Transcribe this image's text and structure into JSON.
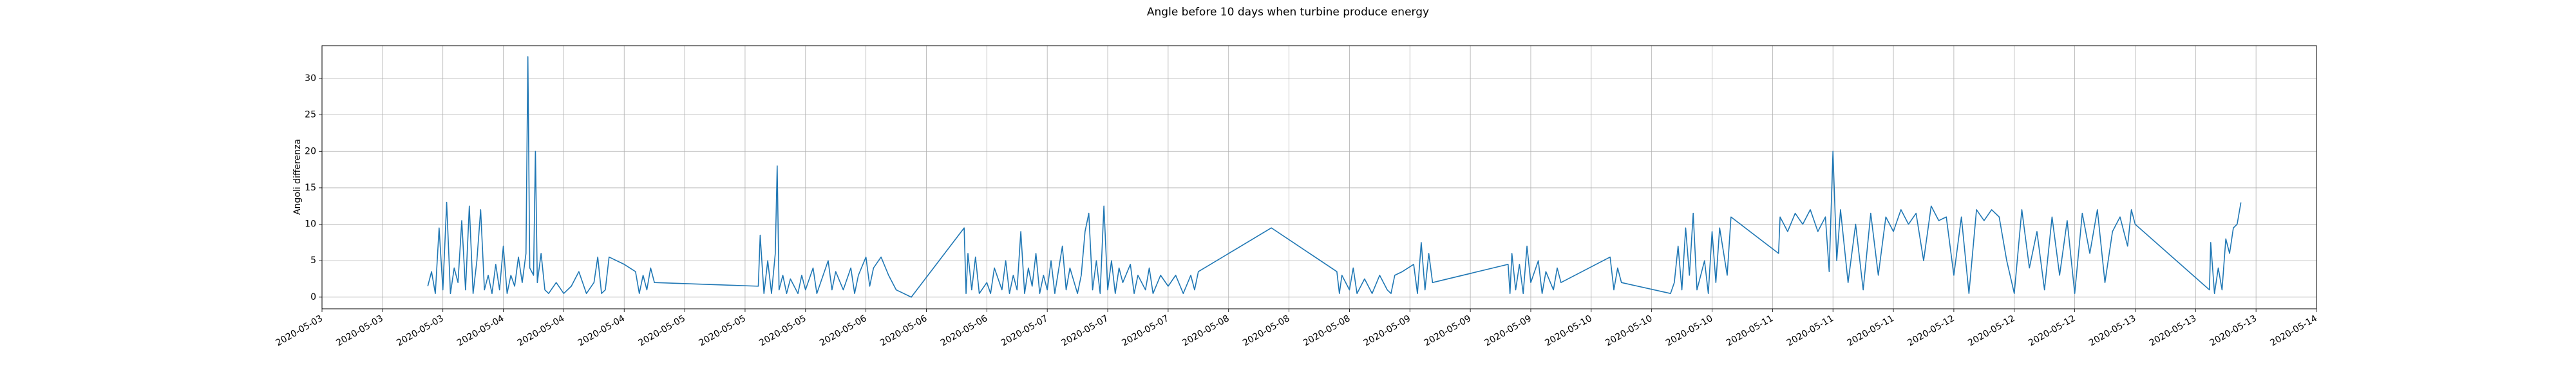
{
  "chart_data": {
    "type": "line",
    "title": "Angle before 10 days when turbine produce energy",
    "y_label": "Angoli differenza",
    "color": "#1f77b4",
    "grid": true,
    "xlim": [
      "2020-05-03 00:00",
      "2020-05-14 00:00"
    ],
    "ylim": [
      -1.6,
      34.5
    ],
    "yticks": [
      0,
      5,
      10,
      15,
      20,
      25,
      30
    ],
    "xticks": [
      {
        "value": "2020-05-03 00:00",
        "label": "2020-05-03"
      },
      {
        "value": "2020-05-03 08:00",
        "label": "2020-05-03"
      },
      {
        "value": "2020-05-03 16:00",
        "label": "2020-05-03"
      },
      {
        "value": "2020-05-04 00:00",
        "label": "2020-05-04"
      },
      {
        "value": "2020-05-04 08:00",
        "label": "2020-05-04"
      },
      {
        "value": "2020-05-04 16:00",
        "label": "2020-05-04"
      },
      {
        "value": "2020-05-05 00:00",
        "label": "2020-05-05"
      },
      {
        "value": "2020-05-05 08:00",
        "label": "2020-05-05"
      },
      {
        "value": "2020-05-05 16:00",
        "label": "2020-05-05"
      },
      {
        "value": "2020-05-06 00:00",
        "label": "2020-05-06"
      },
      {
        "value": "2020-05-06 08:00",
        "label": "2020-05-06"
      },
      {
        "value": "2020-05-06 16:00",
        "label": "2020-05-06"
      },
      {
        "value": "2020-05-07 00:00",
        "label": "2020-05-07"
      },
      {
        "value": "2020-05-07 08:00",
        "label": "2020-05-07"
      },
      {
        "value": "2020-05-07 16:00",
        "label": "2020-05-07"
      },
      {
        "value": "2020-05-08 00:00",
        "label": "2020-05-08"
      },
      {
        "value": "2020-05-08 08:00",
        "label": "2020-05-08"
      },
      {
        "value": "2020-05-08 16:00",
        "label": "2020-05-08"
      },
      {
        "value": "2020-05-09 00:00",
        "label": "2020-05-09"
      },
      {
        "value": "2020-05-09 08:00",
        "label": "2020-05-09"
      },
      {
        "value": "2020-05-09 16:00",
        "label": "2020-05-09"
      },
      {
        "value": "2020-05-10 00:00",
        "label": "2020-05-10"
      },
      {
        "value": "2020-05-10 08:00",
        "label": "2020-05-10"
      },
      {
        "value": "2020-05-10 16:00",
        "label": "2020-05-10"
      },
      {
        "value": "2020-05-11 00:00",
        "label": "2020-05-11"
      },
      {
        "value": "2020-05-11 08:00",
        "label": "2020-05-11"
      },
      {
        "value": "2020-05-11 16:00",
        "label": "2020-05-11"
      },
      {
        "value": "2020-05-12 00:00",
        "label": "2020-05-12"
      },
      {
        "value": "2020-05-12 08:00",
        "label": "2020-05-12"
      },
      {
        "value": "2020-05-12 16:00",
        "label": "2020-05-12"
      },
      {
        "value": "2020-05-13 00:00",
        "label": "2020-05-13"
      },
      {
        "value": "2020-05-13 08:00",
        "label": "2020-05-13"
      },
      {
        "value": "2020-05-13 16:00",
        "label": "2020-05-13"
      },
      {
        "value": "2020-05-14 00:00",
        "label": "2020-05-14"
      }
    ],
    "x": [
      "2020-05-03 14:00",
      "2020-05-03 14:30",
      "2020-05-03 15:00",
      "2020-05-03 15:30",
      "2020-05-03 16:00",
      "2020-05-03 16:30",
      "2020-05-03 17:00",
      "2020-05-03 17:30",
      "2020-05-03 18:00",
      "2020-05-03 18:30",
      "2020-05-03 19:00",
      "2020-05-03 19:30",
      "2020-05-03 20:00",
      "2020-05-03 20:30",
      "2020-05-03 21:00",
      "2020-05-03 21:30",
      "2020-05-03 22:00",
      "2020-05-03 22:30",
      "2020-05-03 23:00",
      "2020-05-03 23:30",
      "2020-05-04 00:00",
      "2020-05-04 00:30",
      "2020-05-04 01:00",
      "2020-05-04 01:30",
      "2020-05-04 02:00",
      "2020-05-04 02:30",
      "2020-05-04 03:00",
      "2020-05-04 03:15",
      "2020-05-04 03:30",
      "2020-05-04 04:00",
      "2020-05-04 04:15",
      "2020-05-04 04:30",
      "2020-05-04 05:00",
      "2020-05-04 05:30",
      "2020-05-04 06:00",
      "2020-05-04 07:00",
      "2020-05-04 08:00",
      "2020-05-04 09:00",
      "2020-05-04 10:00",
      "2020-05-04 11:00",
      "2020-05-04 12:00",
      "2020-05-04 12:30",
      "2020-05-04 13:00",
      "2020-05-04 13:30",
      "2020-05-04 14:00",
      "2020-05-04 16:00",
      "2020-05-04 17:30",
      "2020-05-04 18:00",
      "2020-05-04 18:30",
      "2020-05-04 19:00",
      "2020-05-04 19:30",
      "2020-05-04 20:00",
      "2020-05-05 09:45",
      "2020-05-05 10:00",
      "2020-05-05 10:30",
      "2020-05-05 11:00",
      "2020-05-05 11:30",
      "2020-05-05 12:00",
      "2020-05-05 12:15",
      "2020-05-05 12:30",
      "2020-05-05 13:00",
      "2020-05-05 13:30",
      "2020-05-05 14:00",
      "2020-05-05 15:00",
      "2020-05-05 15:30",
      "2020-05-05 16:00",
      "2020-05-05 17:00",
      "2020-05-05 17:30",
      "2020-05-05 18:00",
      "2020-05-05 19:00",
      "2020-05-05 19:30",
      "2020-05-05 20:00",
      "2020-05-05 21:00",
      "2020-05-05 22:00",
      "2020-05-05 22:30",
      "2020-05-05 23:00",
      "2020-05-06 00:00",
      "2020-05-06 00:30",
      "2020-05-06 01:00",
      "2020-05-06 02:00",
      "2020-05-06 03:00",
      "2020-05-06 04:00",
      "2020-05-06 06:00",
      "2020-05-06 13:00",
      "2020-05-06 13:15",
      "2020-05-06 13:30",
      "2020-05-06 14:00",
      "2020-05-06 14:30",
      "2020-05-06 15:00",
      "2020-05-06 16:00",
      "2020-05-06 16:30",
      "2020-05-06 17:00",
      "2020-05-06 18:00",
      "2020-05-06 18:30",
      "2020-05-06 19:00",
      "2020-05-06 19:30",
      "2020-05-06 20:00",
      "2020-05-06 20:30",
      "2020-05-06 21:00",
      "2020-05-06 21:30",
      "2020-05-06 22:00",
      "2020-05-06 22:30",
      "2020-05-06 23:00",
      "2020-05-06 23:30",
      "2020-05-07 00:00",
      "2020-05-07 00:30",
      "2020-05-07 01:00",
      "2020-05-07 02:00",
      "2020-05-07 02:30",
      "2020-05-07 03:00",
      "2020-05-07 04:00",
      "2020-05-07 04:30",
      "2020-05-07 05:00",
      "2020-05-07 05:30",
      "2020-05-07 06:00",
      "2020-05-07 06:30",
      "2020-05-07 07:00",
      "2020-05-07 07:30",
      "2020-05-07 08:00",
      "2020-05-07 08:30",
      "2020-05-07 09:00",
      "2020-05-07 09:30",
      "2020-05-07 10:00",
      "2020-05-07 11:00",
      "2020-05-07 11:30",
      "2020-05-07 12:00",
      "2020-05-07 13:00",
      "2020-05-07 13:30",
      "2020-05-07 14:00",
      "2020-05-07 15:00",
      "2020-05-07 16:00",
      "2020-05-07 17:00",
      "2020-05-07 18:00",
      "2020-05-07 19:00",
      "2020-05-07 19:30",
      "2020-05-07 20:00",
      "2020-05-08 05:40",
      "2020-05-08 14:20",
      "2020-05-08 14:40",
      "2020-05-08 15:00",
      "2020-05-08 16:00",
      "2020-05-08 16:30",
      "2020-05-08 17:00",
      "2020-05-08 18:00",
      "2020-05-08 19:00",
      "2020-05-08 20:00",
      "2020-05-08 21:00",
      "2020-05-08 21:30",
      "2020-05-08 22:00",
      "2020-05-08 23:00",
      "2020-05-09 00:30",
      "2020-05-09 01:00",
      "2020-05-09 01:30",
      "2020-05-09 02:00",
      "2020-05-09 02:30",
      "2020-05-09 03:00",
      "2020-05-09 13:00",
      "2020-05-09 13:15",
      "2020-05-09 13:30",
      "2020-05-09 14:00",
      "2020-05-09 14:30",
      "2020-05-09 15:00",
      "2020-05-09 15:30",
      "2020-05-09 16:00",
      "2020-05-09 17:00",
      "2020-05-09 17:30",
      "2020-05-09 18:00",
      "2020-05-09 19:00",
      "2020-05-09 19:30",
      "2020-05-09 20:00",
      "2020-05-10 02:30",
      "2020-05-10 03:00",
      "2020-05-10 03:30",
      "2020-05-10 04:00",
      "2020-05-10 10:30",
      "2020-05-10 11:00",
      "2020-05-10 11:30",
      "2020-05-10 12:00",
      "2020-05-10 12:30",
      "2020-05-10 13:00",
      "2020-05-10 13:30",
      "2020-05-10 14:00",
      "2020-05-10 15:00",
      "2020-05-10 15:30",
      "2020-05-10 16:00",
      "2020-05-10 16:30",
      "2020-05-10 17:00",
      "2020-05-10 18:00",
      "2020-05-10 18:30",
      "2020-05-11 00:48",
      "2020-05-11 01:00",
      "2020-05-11 02:00",
      "2020-05-11 03:00",
      "2020-05-11 04:00",
      "2020-05-11 05:00",
      "2020-05-11 06:00",
      "2020-05-11 07:00",
      "2020-05-11 07:30",
      "2020-05-11 08:00",
      "2020-05-11 08:30",
      "2020-05-11 09:00",
      "2020-05-11 10:00",
      "2020-05-11 11:00",
      "2020-05-11 12:00",
      "2020-05-11 13:00",
      "2020-05-11 14:00",
      "2020-05-11 15:00",
      "2020-05-11 16:00",
      "2020-05-11 17:00",
      "2020-05-11 18:00",
      "2020-05-11 19:00",
      "2020-05-11 20:00",
      "2020-05-11 21:00",
      "2020-05-11 22:00",
      "2020-05-11 23:00",
      "2020-05-12 00:00",
      "2020-05-12 01:00",
      "2020-05-12 02:00",
      "2020-05-12 03:00",
      "2020-05-12 04:00",
      "2020-05-12 05:00",
      "2020-05-12 06:00",
      "2020-05-12 07:00",
      "2020-05-12 08:00",
      "2020-05-12 09:00",
      "2020-05-12 10:00",
      "2020-05-12 11:00",
      "2020-05-12 12:00",
      "2020-05-12 13:00",
      "2020-05-12 14:00",
      "2020-05-12 15:00",
      "2020-05-12 16:00",
      "2020-05-12 17:00",
      "2020-05-12 18:00",
      "2020-05-12 19:00",
      "2020-05-12 20:00",
      "2020-05-12 21:00",
      "2020-05-12 22:00",
      "2020-05-12 23:00",
      "2020-05-12 23:30",
      "2020-05-13 00:00",
      "2020-05-13 09:50",
      "2020-05-13 10:00",
      "2020-05-13 10:30",
      "2020-05-13 11:00",
      "2020-05-13 11:30",
      "2020-05-13 12:00",
      "2020-05-13 12:30",
      "2020-05-13 13:00",
      "2020-05-13 13:30",
      "2020-05-13 14:00"
    ],
    "values": [
      1.5,
      3.5,
      0.5,
      9.5,
      1,
      13,
      0.5,
      4,
      2,
      10.5,
      1,
      12.5,
      0.5,
      5,
      12,
      1,
      3,
      0.5,
      4.5,
      1,
      7,
      0.5,
      3,
      1.5,
      5.5,
      2,
      6,
      33,
      4,
      3,
      20,
      2,
      6,
      1,
      0.5,
      2,
      0.5,
      1.5,
      3.5,
      0.5,
      2,
      5.5,
      0.5,
      1,
      5.5,
      4.5,
      3.5,
      0.5,
      3,
      1,
      4,
      2,
      1.5,
      8.5,
      0.5,
      5,
      0.5,
      6,
      18,
      1,
      3,
      0.5,
      2.5,
      0.5,
      3,
      1,
      4,
      0.5,
      2,
      5,
      1,
      3.5,
      1,
      4,
      0.5,
      3,
      5.5,
      1.5,
      4,
      5.5,
      3,
      1,
      0,
      9.5,
      0.5,
      6,
      1,
      5.5,
      0.5,
      2,
      0.5,
      4,
      1,
      5,
      0.5,
      3,
      1,
      9,
      0.5,
      4,
      1.5,
      6,
      0.5,
      3,
      1,
      5,
      0.5,
      7,
      1,
      4,
      0.5,
      3,
      9,
      11.5,
      1,
      5,
      0.5,
      12.5,
      1,
      5,
      0.5,
      4,
      2,
      4.5,
      0.5,
      3,
      1,
      4,
      0.5,
      3,
      1.5,
      3,
      0.5,
      3,
      1,
      3.5,
      9.5,
      3.5,
      0.5,
      3,
      1,
      4,
      0.5,
      2.5,
      0.5,
      3,
      1,
      0.5,
      3,
      3.5,
      4.5,
      0.5,
      7.5,
      1,
      6,
      2,
      4.5,
      0.5,
      6,
      1,
      4.5,
      0.5,
      7,
      2,
      5,
      0.5,
      3.5,
      1,
      4,
      2,
      5.5,
      1,
      4,
      2,
      0.5,
      2,
      7,
      1,
      9.5,
      3,
      11.5,
      1,
      5,
      0.5,
      9,
      2,
      9.5,
      3,
      11,
      6,
      11,
      9,
      11.5,
      10,
      12,
      9,
      11,
      3.5,
      20,
      5,
      12,
      2,
      10,
      1,
      11.5,
      3,
      11,
      9,
      12,
      10,
      11.5,
      5,
      12.5,
      10.5,
      11,
      3,
      11,
      0.5,
      12,
      10.5,
      12,
      11,
      5,
      0.5,
      12,
      4,
      9,
      1,
      11,
      3,
      10.5,
      0.5,
      11.5,
      6,
      12,
      2,
      9,
      11,
      7,
      12,
      10,
      1,
      7.5,
      0.5,
      4,
      1,
      8,
      6,
      9.5,
      10,
      13
    ]
  }
}
